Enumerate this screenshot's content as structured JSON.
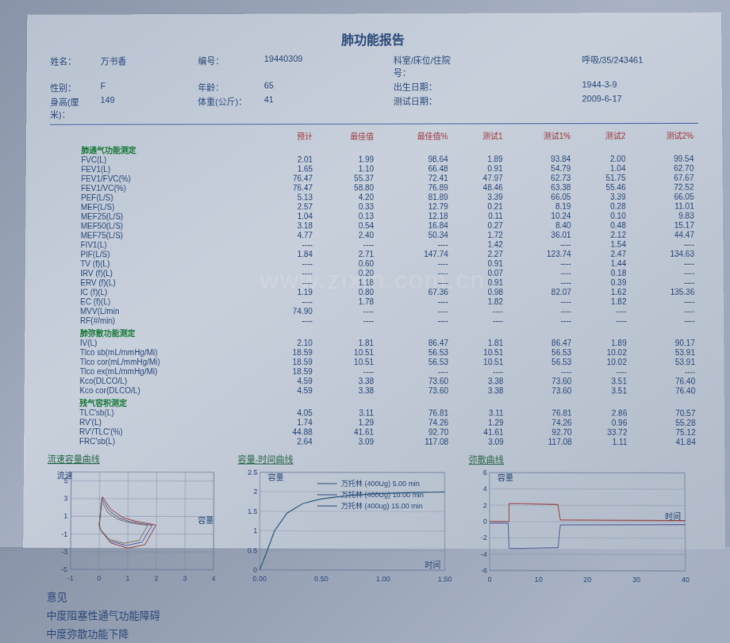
{
  "title": "肺功能报告",
  "demographics": {
    "name_lbl": "姓名：",
    "name": "万书香",
    "id_lbl": "编号：",
    "id": "19440309",
    "dept_lbl": "科室/床位/住院号：",
    "dept": "呼吸/35/243461",
    "sex_lbl": "性别：",
    "sex": "F",
    "age_lbl": "年龄：",
    "age": "65",
    "dob_lbl": "出生日期：",
    "dob": "1944-3-9",
    "height_lbl": "身高(厘米)：",
    "height": "149",
    "weight_lbl": "体重(公斤)：",
    "weight": "41",
    "test_date_lbl": "测试日期：",
    "test_date": "2009-6-17"
  },
  "headers": [
    "",
    "预计",
    "最佳值",
    "最佳值%",
    "测试1",
    "测试1%",
    "测试2",
    "测试2%"
  ],
  "sections": {
    "vent": "肺通气功能测定",
    "diff": "肺弥散功能测定",
    "res": "残气容积测定"
  },
  "rows": [
    {
      "s": "vent",
      "n": "FVC(L)",
      "v": [
        "2.01",
        "1.99",
        "98.64",
        "1.89",
        "93.84",
        "2.00",
        "99.54"
      ]
    },
    {
      "s": "vent",
      "n": "FEV1(L)",
      "v": [
        "1.65",
        "1.10",
        "66.48",
        "0.91",
        "54.79",
        "1.04",
        "62.70"
      ]
    },
    {
      "s": "vent",
      "n": "FEV1/FVC(%)",
      "v": [
        "76.47",
        "55.37",
        "72.41",
        "47.97",
        "62.73",
        "51.75",
        "67.67"
      ]
    },
    {
      "s": "vent",
      "n": "FEV1/VC(%)",
      "v": [
        "76.47",
        "58.80",
        "76.89",
        "48.46",
        "63.38",
        "55.46",
        "72.52"
      ]
    },
    {
      "s": "vent",
      "n": "PEF(L/S)",
      "v": [
        "5.13",
        "4.20",
        "81.89",
        "3.39",
        "66.05",
        "3.39",
        "66.05"
      ]
    },
    {
      "s": "vent",
      "n": "MEF(L/S)",
      "v": [
        "2.57",
        "0.33",
        "12.79",
        "0.21",
        "8.19",
        "0.28",
        "11.01"
      ]
    },
    {
      "s": "vent",
      "n": "MEF25(L/S)",
      "v": [
        "1.04",
        "0.13",
        "12.18",
        "0.11",
        "10.24",
        "0.10",
        "9.83"
      ]
    },
    {
      "s": "vent",
      "n": "MEF50(L/S)",
      "v": [
        "3.18",
        "0.54",
        "16.84",
        "0.27",
        "8.40",
        "0.48",
        "15.17"
      ]
    },
    {
      "s": "vent",
      "n": "MEF75(L/S)",
      "v": [
        "4.77",
        "2.40",
        "50.34",
        "1.72",
        "36.01",
        "2.12",
        "44.47"
      ]
    },
    {
      "s": "vent",
      "n": "FIV1(L)",
      "v": [
        "----",
        "----",
        "----",
        "1.42",
        "----",
        "1.54",
        "----"
      ]
    },
    {
      "s": "vent",
      "n": "PIF(L/S)",
      "v": [
        "1.84",
        "2.71",
        "147.74",
        "2.27",
        "123.74",
        "2.47",
        "134.63"
      ]
    },
    {
      "s": "vent",
      "n": "TV  (f)(L)",
      "v": [
        "----",
        "0.60",
        "----",
        "0.91",
        "----",
        "1.44",
        "----"
      ]
    },
    {
      "s": "vent",
      "n": "IRV  (f)(L)",
      "v": [
        "----",
        "0.20",
        "----",
        "0.07",
        "----",
        "0.18",
        "----"
      ]
    },
    {
      "s": "vent",
      "n": "ERV  (f)(L)",
      "v": [
        "----",
        "1.18",
        "----",
        "0.91",
        "----",
        "0.39",
        "----"
      ]
    },
    {
      "s": "vent",
      "n": "IC  (f)(L)",
      "v": [
        "1.19",
        "0.80",
        "67.36",
        "0.98",
        "82.07",
        "1.62",
        "135.36"
      ]
    },
    {
      "s": "vent",
      "n": "EC  (f)(L)",
      "v": [
        "----",
        "1.78",
        "----",
        "1.82",
        "----",
        "1.82",
        "----"
      ]
    },
    {
      "s": "vent",
      "n": "MVV(L/min",
      "v": [
        "74.90",
        "----",
        "----",
        "----",
        "----",
        "----",
        "----"
      ]
    },
    {
      "s": "vent",
      "n": "RF(#/min)",
      "v": [
        "----",
        "----",
        "----",
        "----",
        "----",
        "----",
        "----"
      ]
    },
    {
      "s": "diff",
      "n": "IV(L)",
      "v": [
        "2.10",
        "1.81",
        "86.47",
        "1.81",
        "86.47",
        "1.89",
        "90.17"
      ]
    },
    {
      "s": "diff",
      "n": "Tlco sb(mL/mmHg/Mi)",
      "v": [
        "18.59",
        "10.51",
        "56.53",
        "10.51",
        "56.53",
        "10.02",
        "53.91"
      ]
    },
    {
      "s": "diff",
      "n": "Tlco cor(mL/mmHg/Mi)",
      "v": [
        "18.59",
        "10.51",
        "56.53",
        "10.51",
        "56.53",
        "10.02",
        "53.91"
      ]
    },
    {
      "s": "diff",
      "n": "Tlco ex(mL/mmHg/Mi)",
      "v": [
        "18.59",
        "----",
        "----",
        "----",
        "----",
        "----",
        "----"
      ]
    },
    {
      "s": "diff",
      "n": "Kco(DLCO/L)",
      "v": [
        "4.59",
        "3.38",
        "73.60",
        "3.38",
        "73.60",
        "3.51",
        "76.40"
      ]
    },
    {
      "s": "diff",
      "n": "Kco cor(DLCO/L)",
      "v": [
        "4.59",
        "3.38",
        "73.60",
        "3.38",
        "73.60",
        "3.51",
        "76.40"
      ]
    },
    {
      "s": "res",
      "n": "TLC'sb(L)",
      "v": [
        "4.05",
        "3.11",
        "76.81",
        "3.11",
        "76.81",
        "2.86",
        "70.57"
      ]
    },
    {
      "s": "res",
      "n": "RV'(L)",
      "v": [
        "1.74",
        "1.29",
        "74.26",
        "1.29",
        "74.26",
        "0.96",
        "55.28"
      ]
    },
    {
      "s": "res",
      "n": "RV'/TLC'(%)",
      "v": [
        "44.88",
        "41.61",
        "92.70",
        "41.61",
        "92.70",
        "33.72",
        "75.12"
      ]
    },
    {
      "s": "res",
      "n": "FRC'sb(L)",
      "v": [
        "2.64",
        "3.09",
        "117.08",
        "3.09",
        "117.08",
        "1.11",
        "41.84"
      ]
    }
  ],
  "chart_titles": {
    "flow": "流速容量曲线",
    "vt": "容量-时间曲线",
    "diff": "弥散曲线"
  },
  "axis": {
    "flow_y": "流速",
    "vol": "容量",
    "time": "时间"
  },
  "legend": [
    "万托林 (400Ug)  5.00 min",
    "万托林 (400Ug) 10.00 min",
    "万托林   (400ug) 15.00 min"
  ],
  "flow_chart": {
    "xlim": [
      -1,
      4
    ],
    "ylim": [
      -5,
      6
    ],
    "xticks": [
      -1,
      0,
      1,
      2,
      3,
      4
    ],
    "yticks": [
      -5,
      -3,
      -1,
      1,
      3,
      5
    ],
    "colors": {
      "grid": "#6a7a98",
      "loop1": "#9a3a3a",
      "loop2": "#505a9a",
      "loop3": "#807060"
    }
  },
  "vt_chart": {
    "xlim": [
      0,
      1.5
    ],
    "ylim": [
      0,
      2.5
    ],
    "xticks": [
      "0.00",
      "0.50",
      "1.00",
      "1.50"
    ],
    "yticks": [
      0,
      0.5,
      1,
      1.5,
      2,
      2.5
    ],
    "curve_color": "#2a5878"
  },
  "diff_chart": {
    "xlim": [
      0,
      40
    ],
    "ylim": [
      -6,
      6
    ],
    "xticks": [
      0,
      10,
      20,
      30,
      40
    ],
    "yticks": [
      -6,
      -4,
      -2,
      0,
      2,
      4,
      6
    ],
    "colors": [
      "#9a3a3a",
      "#505a9a"
    ]
  },
  "diagnosis_title": "意见",
  "diagnosis": [
    "中度阻塞性通气功能障碍",
    "中度弥散功能下降"
  ],
  "watermark": "www.zixin.com.cn"
}
